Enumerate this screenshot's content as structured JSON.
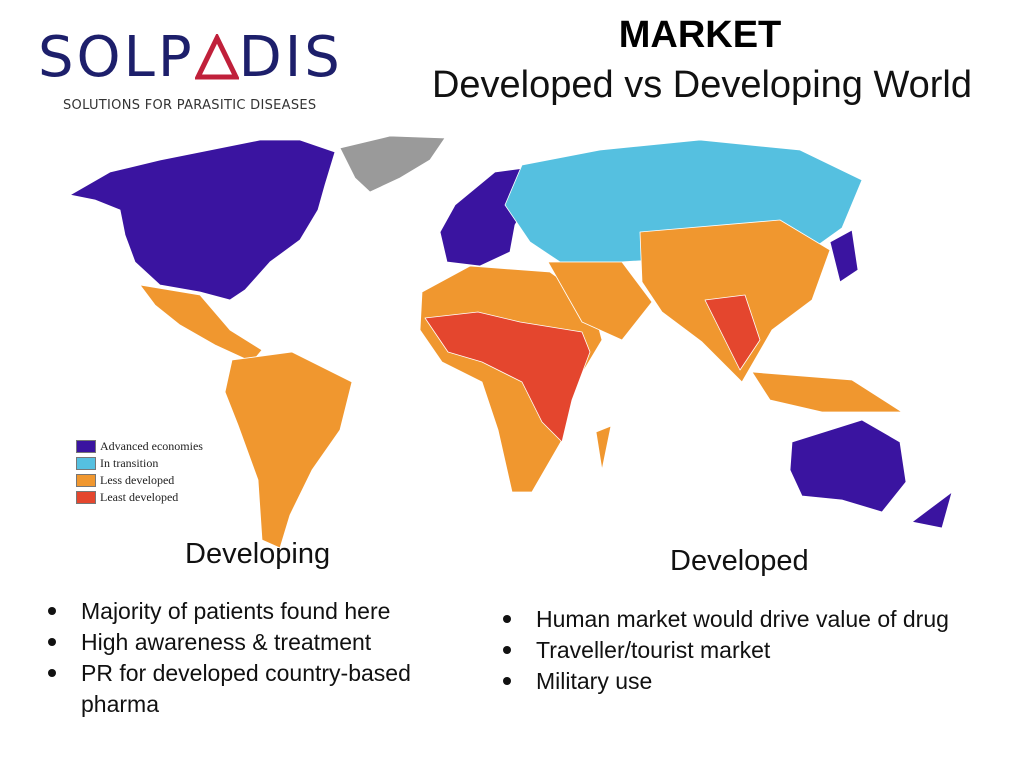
{
  "logo": {
    "wordmark": "SOLPADIS",
    "tagline": "SOLUTIONS FOR PARASITIC DISEASES"
  },
  "title": "MARKET",
  "subtitle": "Developed vs Developing World",
  "map": {
    "legend": [
      {
        "label": "Advanced economies",
        "color": "#3a14a0"
      },
      {
        "label": "In transition",
        "color": "#55c0e0"
      },
      {
        "label": "Less developed",
        "color": "#f0972f"
      },
      {
        "label": "Least developed",
        "color": "#e4462e"
      }
    ],
    "no_data_color": "#9a9a9a"
  },
  "developing": {
    "heading": "Developing",
    "bullets": [
      "Majority of patients found here",
      "High awareness & treatment",
      "PR for developed country-based pharma"
    ]
  },
  "developed": {
    "heading": "Developed",
    "bullets": [
      "Human market would drive value of drug",
      "Traveller/tourist market",
      "Military use"
    ]
  }
}
